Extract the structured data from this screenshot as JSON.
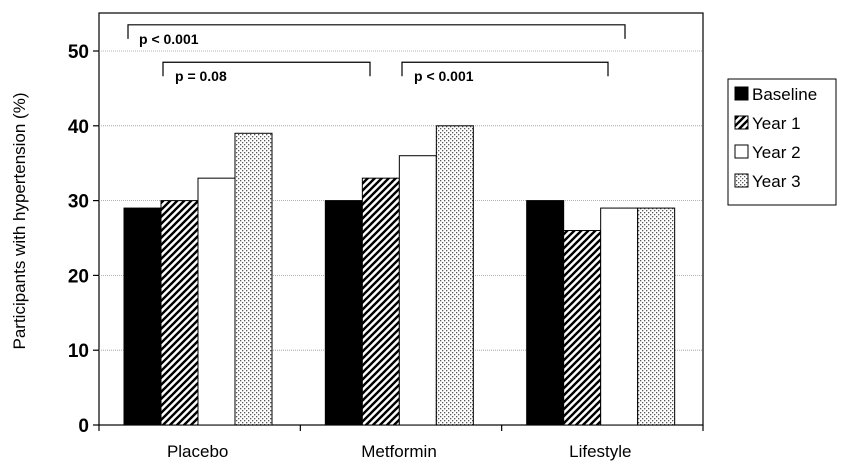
{
  "chart_data": {
    "type": "bar",
    "ylabel": "Participants with hypertension (%)",
    "ylim": [
      0,
      50
    ],
    "yticks": [
      0,
      10,
      20,
      30,
      40,
      50
    ],
    "categories": [
      "Placebo",
      "Metformin",
      "Lifestyle"
    ],
    "series": [
      {
        "name": "Baseline",
        "values": [
          29,
          30,
          30
        ],
        "fill": "solid",
        "color": "#000000"
      },
      {
        "name": "Year 1",
        "values": [
          30,
          33,
          26
        ],
        "fill": "diagonal-hatch",
        "color": "#000000"
      },
      {
        "name": "Year 2",
        "values": [
          33,
          36,
          29
        ],
        "fill": "white",
        "color": "#ffffff"
      },
      {
        "name": "Year 3",
        "values": [
          39,
          40,
          29
        ],
        "fill": "dotted",
        "color": "#cccccc"
      }
    ],
    "grid": true,
    "legend_position": "right",
    "annotations": [
      {
        "text": "p < 0.001",
        "from": "Placebo",
        "to": "Lifestyle",
        "level": 53.5
      },
      {
        "text": "p = 0.08",
        "from": "Placebo",
        "to": "Metformin",
        "level": 48.5
      },
      {
        "text": "p < 0.001",
        "from": "Metformin",
        "to": "Lifestyle",
        "level": 48.5
      }
    ]
  }
}
